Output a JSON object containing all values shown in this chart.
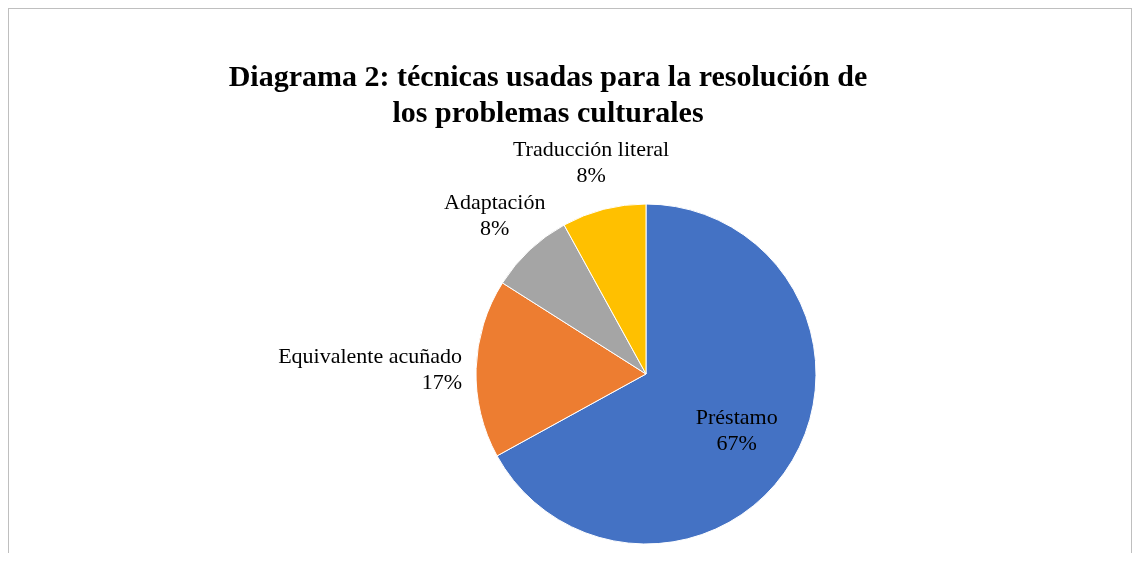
{
  "chart_data": {
    "type": "pie",
    "title": "Diagrama 2: técnicas usadas para la resolución de los problemas culturales",
    "categories": [
      "Préstamo",
      "Equivalente acuñado",
      "Adaptación",
      "Traducción literal"
    ],
    "values": [
      67,
      17,
      8,
      8
    ],
    "value_labels": [
      "67%",
      "17%",
      "8%",
      "8%"
    ],
    "colors": [
      "#4472c4",
      "#ed7d31",
      "#a5a5a5",
      "#ffc000"
    ],
    "legend": false
  }
}
